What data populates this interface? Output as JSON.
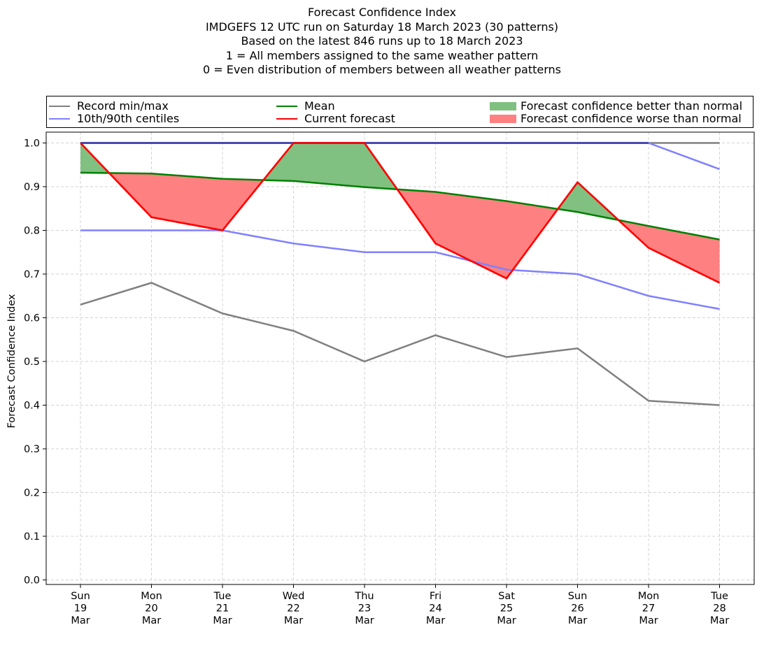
{
  "title_lines": [
    "Forecast Confidence Index",
    "IMDGEFS 12 UTC run on Saturday 18 March 2023 (30 patterns)",
    "Based on the latest 846 runs up to 18 March 2023",
    "1 = All members assigned to the same weather pattern",
    "0 = Even distribution of members between all weather patterns"
  ],
  "legend": {
    "record": "Record min/max",
    "centiles": "10th/90th centiles",
    "mean": "Mean",
    "current": "Current forecast",
    "better": "Forecast confidence better than normal",
    "worse": "Forecast confidence worse than normal"
  },
  "colors": {
    "record": "#808080",
    "centiles": "#8080ff",
    "max_line": "#3a3aa8",
    "mean": "#008000",
    "current": "#ff0000",
    "better_fill": "#80c080",
    "worse_fill": "#ff8080",
    "grid": "#d3d3d3"
  },
  "chart_data": {
    "type": "line",
    "ylabel": "Forecast Confidence Index",
    "xlabel": "",
    "ylim": [
      0.0,
      1.0
    ],
    "yticks": [
      "0.0",
      "0.1",
      "0.2",
      "0.3",
      "0.4",
      "0.5",
      "0.6",
      "0.7",
      "0.8",
      "0.9",
      "1.0"
    ],
    "grid": true,
    "legend_position": "top",
    "categories": [
      [
        "Sun",
        "19",
        "Mar"
      ],
      [
        "Mon",
        "20",
        "Mar"
      ],
      [
        "Tue",
        "21",
        "Mar"
      ],
      [
        "Wed",
        "22",
        "Mar"
      ],
      [
        "Thu",
        "23",
        "Mar"
      ],
      [
        "Fri",
        "24",
        "Mar"
      ],
      [
        "Sat",
        "25",
        "Mar"
      ],
      [
        "Sun",
        "26",
        "Mar"
      ],
      [
        "Mon",
        "27",
        "Mar"
      ],
      [
        "Tue",
        "28",
        "Mar"
      ]
    ],
    "series": [
      {
        "name": "Record min/max",
        "role": "record_max",
        "values": [
          1.0,
          1.0,
          1.0,
          1.0,
          1.0,
          1.0,
          1.0,
          1.0,
          1.0,
          1.0
        ]
      },
      {
        "name": "Record min/max",
        "role": "record_min",
        "values": [
          0.63,
          0.68,
          0.61,
          0.57,
          0.5,
          0.56,
          0.51,
          0.53,
          0.41,
          0.4
        ]
      },
      {
        "name": "10th/90th centiles",
        "role": "p90",
        "values": [
          1.0,
          1.0,
          1.0,
          1.0,
          1.0,
          1.0,
          1.0,
          1.0,
          1.0,
          0.94
        ]
      },
      {
        "name": "10th/90th centiles",
        "role": "p10",
        "values": [
          0.8,
          0.8,
          0.8,
          0.77,
          0.75,
          0.75,
          0.71,
          0.7,
          0.65,
          0.62
        ]
      },
      {
        "name": "Mean",
        "role": "mean",
        "values": [
          0.932,
          0.93,
          0.918,
          0.913,
          0.899,
          0.888,
          0.867,
          0.842,
          0.81,
          0.779
        ]
      },
      {
        "name": "Current forecast",
        "role": "current",
        "values": [
          1.0,
          0.83,
          0.8,
          1.0,
          1.0,
          0.77,
          0.69,
          0.91,
          0.76,
          0.68
        ]
      }
    ]
  }
}
